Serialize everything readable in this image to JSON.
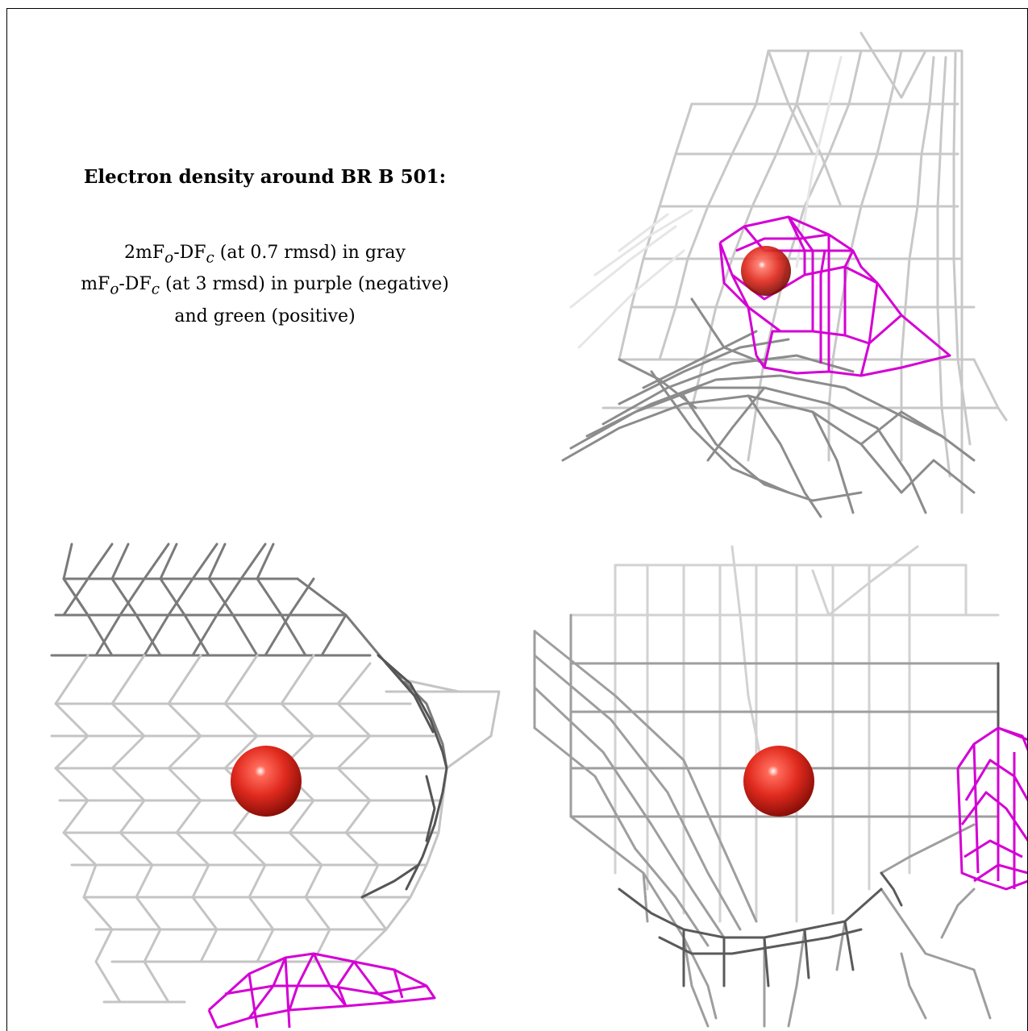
{
  "caption": {
    "heading": "Electron density around BR B 501:",
    "line1": {
      "pre": "2mF",
      "sub1": "o",
      "mid": "-DF",
      "sub2": "c",
      "post": " (at 0.7 rmsd) in gray"
    },
    "line2": {
      "pre": "mF",
      "sub1": "o",
      "mid": "-DF",
      "sub2": "c",
      "post": " (at 3 rmsd) in purple (negative)"
    },
    "line3": "and green (positive)"
  },
  "colors": {
    "map_2fofc": "#9a9a9a",
    "map_fofc_negative": "#d400d4",
    "atom": "#e02a1e"
  },
  "panels": [
    {
      "name": "view-1",
      "atom": "red-sphere",
      "meshes": [
        "gray-mesh",
        "purple-mesh"
      ]
    },
    {
      "name": "view-2",
      "atom": "red-sphere",
      "meshes": [
        "gray-mesh",
        "purple-mesh"
      ]
    },
    {
      "name": "view-3",
      "atom": "red-sphere",
      "meshes": [
        "gray-mesh",
        "purple-mesh"
      ]
    }
  ]
}
